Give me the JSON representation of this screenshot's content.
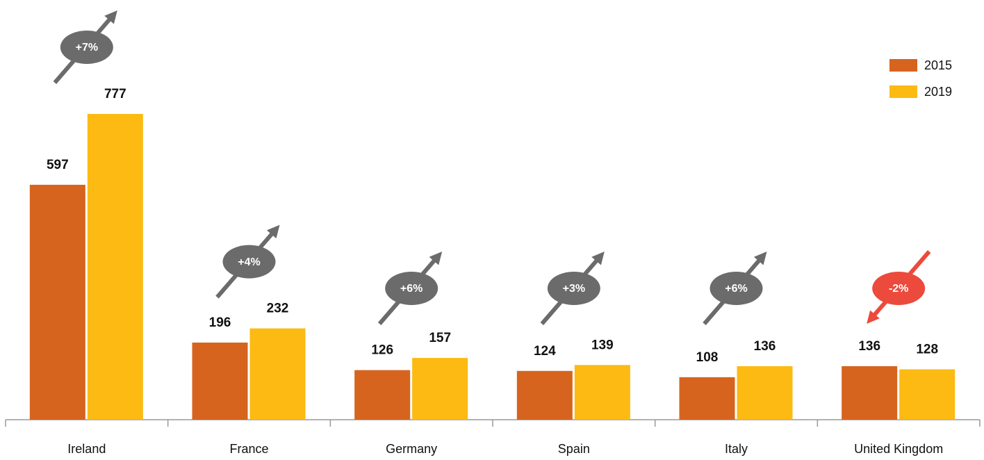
{
  "chart_data": {
    "type": "bar",
    "categories": [
      "Ireland",
      "France",
      "Germany",
      "Spain",
      "Italy",
      "United Kingdom"
    ],
    "series": [
      {
        "name": "2015",
        "color": "#d6641e",
        "values": [
          597,
          196,
          126,
          124,
          108,
          136
        ]
      },
      {
        "name": "2019",
        "color": "#fcba12",
        "values": [
          777,
          232,
          157,
          139,
          136,
          128
        ]
      }
    ],
    "changes": [
      "+7%",
      "+4%",
      "+6%",
      "+3%",
      "+6%",
      "-2%"
    ],
    "change_colors": [
      "#6b6b6b",
      "#6b6b6b",
      "#6b6b6b",
      "#6b6b6b",
      "#6b6b6b",
      "#ec4a3c"
    ],
    "legend": "top-right"
  }
}
